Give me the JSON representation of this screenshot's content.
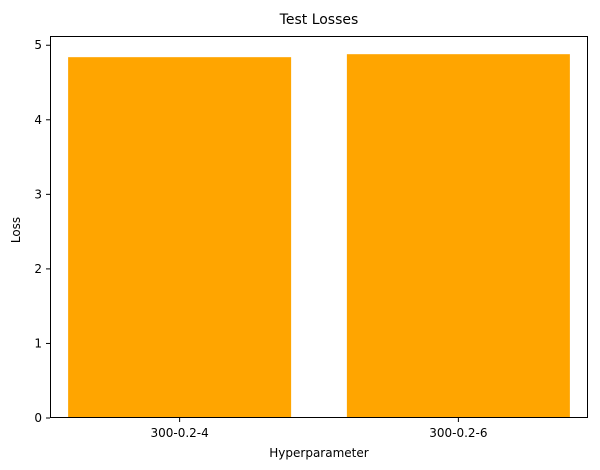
{
  "chart_data": {
    "type": "bar",
    "title": "Test Losses",
    "xlabel": "Hyperparameter",
    "ylabel": "Loss",
    "categories": [
      "300-0.2-4",
      "300-0.2-6"
    ],
    "values": [
      4.84,
      4.88
    ],
    "ylim": [
      0,
      5.124
    ],
    "yticks": [
      0,
      1,
      2,
      3,
      4,
      5
    ],
    "bar_color": "#ffa500",
    "grid": false,
    "legend": "none"
  }
}
